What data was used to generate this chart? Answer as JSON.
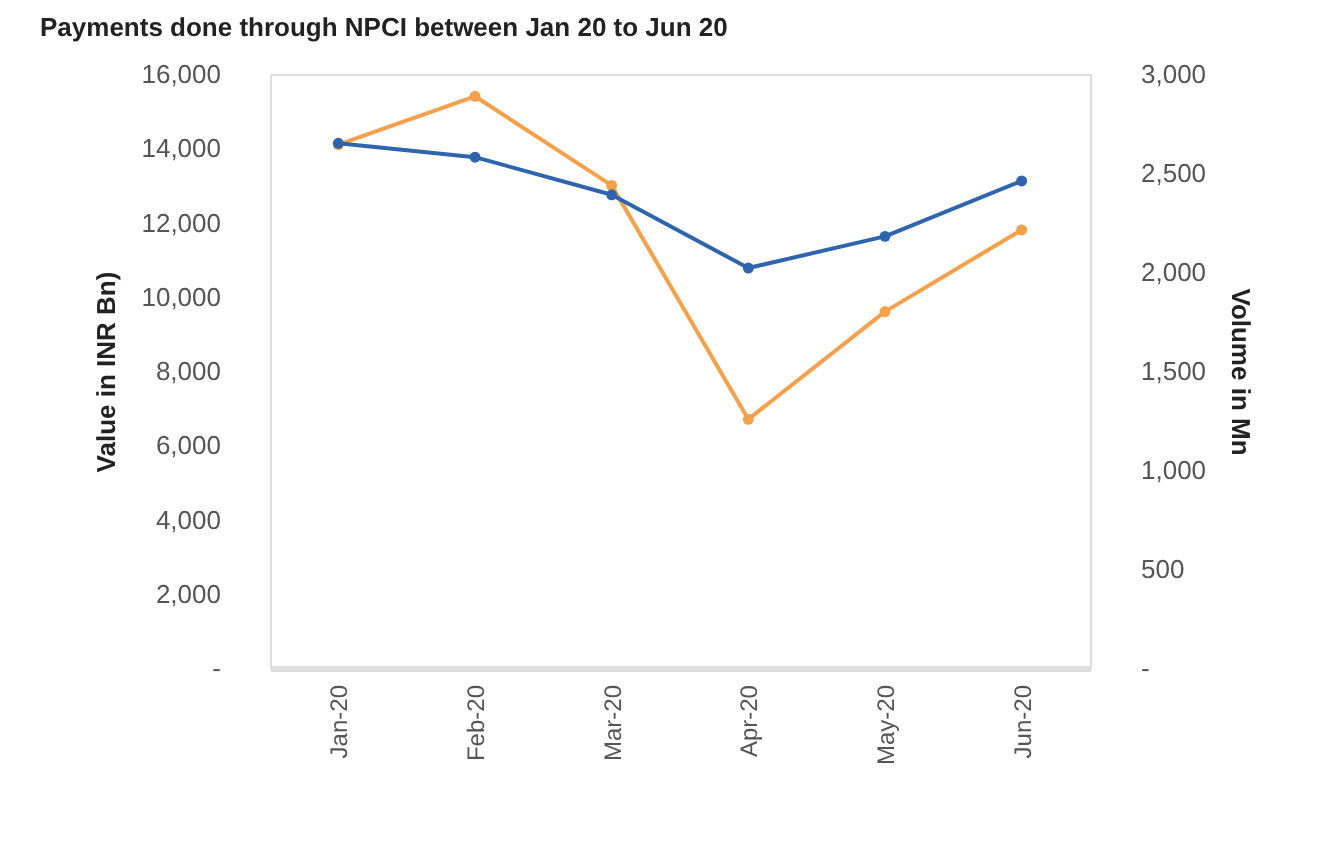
{
  "chart_data": {
    "type": "line",
    "title": "Payments done through NPCI between Jan 20 to Jun 20",
    "ylabel": "Value in INR Bn)",
    "y2label": "Volume in Mn",
    "categories": [
      "Jan-20",
      "Feb-20",
      "Mar-20",
      "Apr-20",
      "May-20",
      "Jun-20"
    ],
    "series": [
      {
        "color": "#f5a04a",
        "values": [
          14100,
          15400,
          13000,
          6700,
          9600,
          11800
        ]
      },
      {
        "color": "#2e65ad",
        "axis": "y2",
        "values": [
          2650,
          2580,
          2390,
          2020,
          2180,
          2460
        ]
      }
    ],
    "ylim": [
      0,
      16000
    ],
    "yticks": [
      {
        "value": 0,
        "label": "-"
      },
      {
        "value": 2000,
        "label": "2,000"
      },
      {
        "value": 4000,
        "label": "4,000"
      },
      {
        "value": 6000,
        "label": "6,000"
      },
      {
        "value": 8000,
        "label": "8,000"
      },
      {
        "value": 10000,
        "label": "10,000"
      },
      {
        "value": 12000,
        "label": "12,000"
      },
      {
        "value": 14000,
        "label": "14,000"
      },
      {
        "value": 16000,
        "label": "16,000"
      }
    ],
    "y2lim": [
      0,
      3000
    ],
    "y2ticks": [
      {
        "value": 0,
        "label": "-"
      },
      500,
      {
        "value": 1000,
        "label": "1,000"
      },
      {
        "value": 1500,
        "label": "1,500"
      },
      {
        "value": 2000,
        "label": "2,000"
      },
      {
        "value": 2500,
        "label": "2,500"
      },
      {
        "value": 3000,
        "label": "3,000"
      }
    ],
    "grid": false,
    "marker": "circle",
    "line_style": "solid"
  }
}
